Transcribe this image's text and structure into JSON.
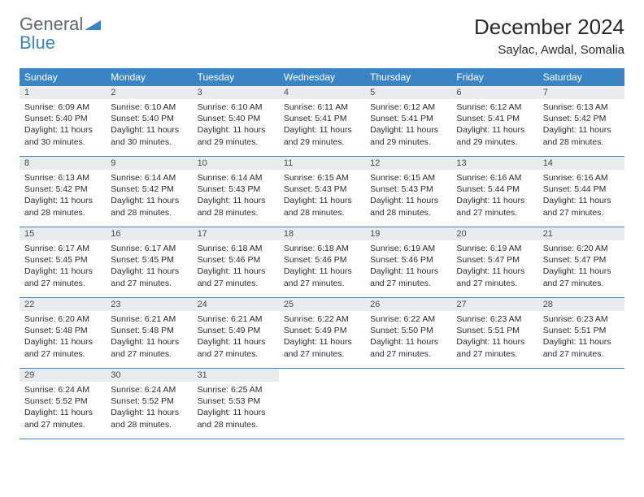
{
  "logo": {
    "text1": "General",
    "text2": "Blue"
  },
  "title": "December 2024",
  "location": "Saylac, Awdal, Somalia",
  "colors": {
    "accent": "#3a84c4",
    "dayBg": "#e9ebec",
    "text": "#2a2a2a",
    "logoGray": "#5c6770"
  },
  "dayHeaders": [
    "Sunday",
    "Monday",
    "Tuesday",
    "Wednesday",
    "Thursday",
    "Friday",
    "Saturday"
  ],
  "weeks": [
    [
      {
        "n": "1",
        "sr": "6:09 AM",
        "ss": "5:40 PM",
        "dl": "11 hours and 30 minutes."
      },
      {
        "n": "2",
        "sr": "6:10 AM",
        "ss": "5:40 PM",
        "dl": "11 hours and 30 minutes."
      },
      {
        "n": "3",
        "sr": "6:10 AM",
        "ss": "5:40 PM",
        "dl": "11 hours and 29 minutes."
      },
      {
        "n": "4",
        "sr": "6:11 AM",
        "ss": "5:41 PM",
        "dl": "11 hours and 29 minutes."
      },
      {
        "n": "5",
        "sr": "6:12 AM",
        "ss": "5:41 PM",
        "dl": "11 hours and 29 minutes."
      },
      {
        "n": "6",
        "sr": "6:12 AM",
        "ss": "5:41 PM",
        "dl": "11 hours and 29 minutes."
      },
      {
        "n": "7",
        "sr": "6:13 AM",
        "ss": "5:42 PM",
        "dl": "11 hours and 28 minutes."
      }
    ],
    [
      {
        "n": "8",
        "sr": "6:13 AM",
        "ss": "5:42 PM",
        "dl": "11 hours and 28 minutes."
      },
      {
        "n": "9",
        "sr": "6:14 AM",
        "ss": "5:42 PM",
        "dl": "11 hours and 28 minutes."
      },
      {
        "n": "10",
        "sr": "6:14 AM",
        "ss": "5:43 PM",
        "dl": "11 hours and 28 minutes."
      },
      {
        "n": "11",
        "sr": "6:15 AM",
        "ss": "5:43 PM",
        "dl": "11 hours and 28 minutes."
      },
      {
        "n": "12",
        "sr": "6:15 AM",
        "ss": "5:43 PM",
        "dl": "11 hours and 28 minutes."
      },
      {
        "n": "13",
        "sr": "6:16 AM",
        "ss": "5:44 PM",
        "dl": "11 hours and 27 minutes."
      },
      {
        "n": "14",
        "sr": "6:16 AM",
        "ss": "5:44 PM",
        "dl": "11 hours and 27 minutes."
      }
    ],
    [
      {
        "n": "15",
        "sr": "6:17 AM",
        "ss": "5:45 PM",
        "dl": "11 hours and 27 minutes."
      },
      {
        "n": "16",
        "sr": "6:17 AM",
        "ss": "5:45 PM",
        "dl": "11 hours and 27 minutes."
      },
      {
        "n": "17",
        "sr": "6:18 AM",
        "ss": "5:46 PM",
        "dl": "11 hours and 27 minutes."
      },
      {
        "n": "18",
        "sr": "6:18 AM",
        "ss": "5:46 PM",
        "dl": "11 hours and 27 minutes."
      },
      {
        "n": "19",
        "sr": "6:19 AM",
        "ss": "5:46 PM",
        "dl": "11 hours and 27 minutes."
      },
      {
        "n": "20",
        "sr": "6:19 AM",
        "ss": "5:47 PM",
        "dl": "11 hours and 27 minutes."
      },
      {
        "n": "21",
        "sr": "6:20 AM",
        "ss": "5:47 PM",
        "dl": "11 hours and 27 minutes."
      }
    ],
    [
      {
        "n": "22",
        "sr": "6:20 AM",
        "ss": "5:48 PM",
        "dl": "11 hours and 27 minutes."
      },
      {
        "n": "23",
        "sr": "6:21 AM",
        "ss": "5:48 PM",
        "dl": "11 hours and 27 minutes."
      },
      {
        "n": "24",
        "sr": "6:21 AM",
        "ss": "5:49 PM",
        "dl": "11 hours and 27 minutes."
      },
      {
        "n": "25",
        "sr": "6:22 AM",
        "ss": "5:49 PM",
        "dl": "11 hours and 27 minutes."
      },
      {
        "n": "26",
        "sr": "6:22 AM",
        "ss": "5:50 PM",
        "dl": "11 hours and 27 minutes."
      },
      {
        "n": "27",
        "sr": "6:23 AM",
        "ss": "5:51 PM",
        "dl": "11 hours and 27 minutes."
      },
      {
        "n": "28",
        "sr": "6:23 AM",
        "ss": "5:51 PM",
        "dl": "11 hours and 27 minutes."
      }
    ],
    [
      {
        "n": "29",
        "sr": "6:24 AM",
        "ss": "5:52 PM",
        "dl": "11 hours and 27 minutes."
      },
      {
        "n": "30",
        "sr": "6:24 AM",
        "ss": "5:52 PM",
        "dl": "11 hours and 28 minutes."
      },
      {
        "n": "31",
        "sr": "6:25 AM",
        "ss": "5:53 PM",
        "dl": "11 hours and 28 minutes."
      },
      null,
      null,
      null,
      null
    ]
  ],
  "labels": {
    "sunrise": "Sunrise:",
    "sunset": "Sunset:",
    "daylight": "Daylight:"
  }
}
